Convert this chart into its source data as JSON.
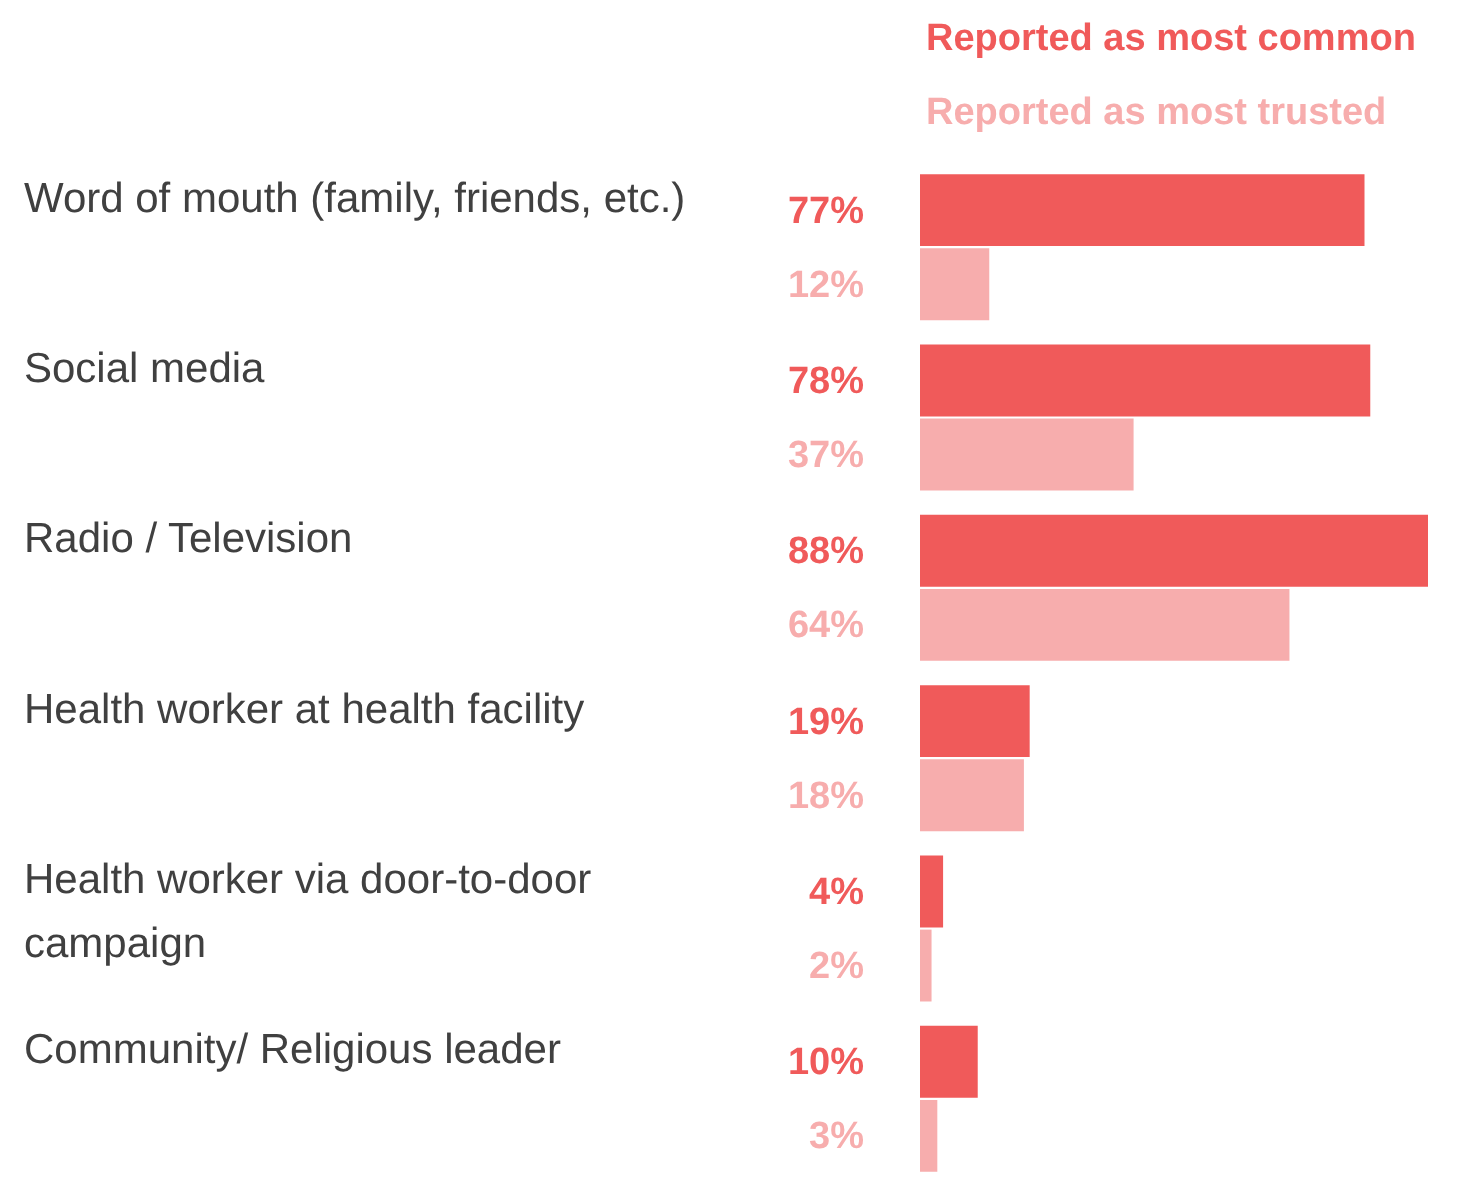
{
  "chart_data": {
    "type": "bar",
    "orientation": "horizontal",
    "legend": "top right",
    "categories": [
      "Word of mouth (family, friends, etc.)",
      "Social media",
      "Radio / Television",
      "Health worker at health facility",
      "Health worker via door-to-door campaign",
      "Community/ Religious leader"
    ],
    "series": [
      {
        "name": "Reported as most common",
        "color": "#f05a5a",
        "values": [
          77,
          78,
          88,
          19,
          4,
          10
        ],
        "value_labels": [
          "77%",
          "78%",
          "88%",
          "19%",
          "4%",
          "10%"
        ]
      },
      {
        "name": "Reported as most trusted",
        "color": "#f7adad",
        "values": [
          12,
          37,
          64,
          18,
          2,
          3
        ],
        "value_labels": [
          "12%",
          "37%",
          "64%",
          "18%",
          "2%",
          "3%"
        ]
      }
    ]
  }
}
